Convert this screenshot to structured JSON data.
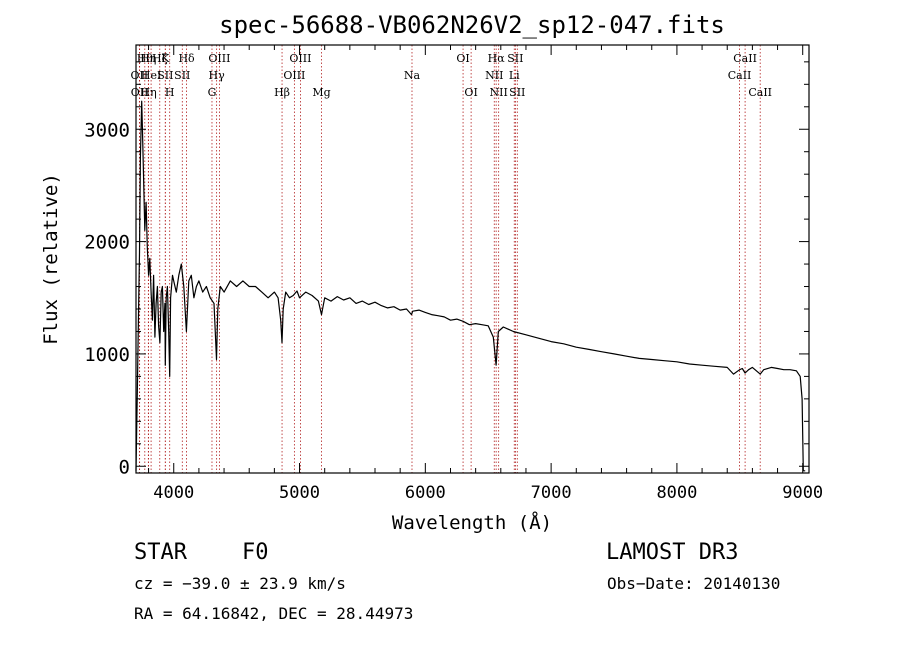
{
  "chart_data": {
    "type": "line",
    "title": "spec-56688-VB062N26V2_sp12-047.fits",
    "xlabel": "Wavelength (Å)",
    "ylabel": "Flux (relative)",
    "xlim": [
      3700,
      9050
    ],
    "ylim": [
      -60,
      3750
    ],
    "xticks": [
      4000,
      5000,
      6000,
      7000,
      8000,
      9000
    ],
    "yticks": [
      0,
      1000,
      2000,
      3000
    ],
    "grid": false,
    "series": [
      {
        "name": "flux",
        "x": [
          3700,
          3710,
          3720,
          3728,
          3735,
          3745,
          3750,
          3760,
          3770,
          3780,
          3790,
          3800,
          3810,
          3820,
          3830,
          3840,
          3850,
          3860,
          3870,
          3880,
          3890,
          3900,
          3910,
          3920,
          3930,
          3933,
          3940,
          3950,
          3960,
          3968,
          3975,
          3990,
          4000,
          4020,
          4040,
          4060,
          4080,
          4101,
          4120,
          4140,
          4160,
          4180,
          4200,
          4230,
          4260,
          4290,
          4320,
          4340,
          4350,
          4370,
          4400,
          4450,
          4500,
          4550,
          4600,
          4650,
          4700,
          4750,
          4800,
          4830,
          4850,
          4861,
          4870,
          4890,
          4920,
          4950,
          4980,
          5000,
          5050,
          5100,
          5150,
          5175,
          5200,
          5250,
          5300,
          5350,
          5400,
          5450,
          5500,
          5550,
          5600,
          5650,
          5700,
          5750,
          5800,
          5850,
          5890,
          5900,
          5950,
          6000,
          6050,
          6100,
          6150,
          6200,
          6250,
          6300,
          6350,
          6400,
          6450,
          6500,
          6540,
          6563,
          6580,
          6620,
          6700,
          6800,
          6900,
          7000,
          7100,
          7200,
          7300,
          7400,
          7500,
          7600,
          7700,
          7800,
          7900,
          8000,
          8100,
          8200,
          8300,
          8400,
          8450,
          8498,
          8520,
          8542,
          8570,
          8600,
          8662,
          8690,
          8750,
          8800,
          8850,
          8900,
          8950,
          8980,
          8995,
          9005,
          9010,
          9020
        ],
        "y": [
          -40,
          650,
          1350,
          1900,
          2750,
          3250,
          3050,
          2600,
          2100,
          2350,
          1950,
          1700,
          1850,
          1550,
          1300,
          1700,
          1150,
          1450,
          1600,
          1250,
          1100,
          1550,
          1600,
          1200,
          1450,
          900,
          1500,
          1600,
          1200,
          800,
          1500,
          1700,
          1650,
          1550,
          1700,
          1800,
          1600,
          1200,
          1650,
          1700,
          1500,
          1600,
          1650,
          1550,
          1600,
          1500,
          1450,
          950,
          1400,
          1600,
          1550,
          1650,
          1600,
          1650,
          1600,
          1600,
          1550,
          1500,
          1550,
          1500,
          1300,
          1100,
          1400,
          1550,
          1500,
          1520,
          1560,
          1500,
          1550,
          1520,
          1470,
          1350,
          1500,
          1470,
          1510,
          1480,
          1500,
          1450,
          1470,
          1440,
          1460,
          1430,
          1410,
          1420,
          1390,
          1400,
          1350,
          1380,
          1390,
          1370,
          1350,
          1340,
          1330,
          1300,
          1310,
          1290,
          1260,
          1270,
          1260,
          1250,
          1150,
          900,
          1200,
          1240,
          1200,
          1170,
          1140,
          1110,
          1090,
          1060,
          1040,
          1020,
          1000,
          980,
          960,
          950,
          940,
          930,
          910,
          900,
          890,
          880,
          820,
          860,
          870,
          830,
          860,
          880,
          820,
          860,
          880,
          870,
          860,
          860,
          850,
          800,
          600,
          -40,
          -40,
          -40
        ]
      }
    ],
    "line_markers": [
      {
        "w": 3727,
        "row": 2,
        "label": "OII"
      },
      {
        "w": 3729,
        "row": 3,
        "label": "OII"
      },
      {
        "w": 3770,
        "row": 1,
        "label": "Hθ"
      },
      {
        "w": 3798,
        "row": 1,
        "label": "Hη"
      },
      {
        "w": 3800,
        "row": 3,
        "label": "Hη"
      },
      {
        "w": 3820,
        "row": 2,
        "label": "HeI"
      },
      {
        "w": 3889,
        "row": 1,
        "label": "Hζ"
      },
      {
        "w": 3933,
        "row": 1,
        "label": "K"
      },
      {
        "w": 3933,
        "row": 2,
        "label": "SII"
      },
      {
        "w": 3968,
        "row": 3,
        "label": "H"
      },
      {
        "w": 4068,
        "row": 2,
        "label": "SII"
      },
      {
        "w": 4102,
        "row": 1,
        "label": "Hδ"
      },
      {
        "w": 4304,
        "row": 3,
        "label": "G"
      },
      {
        "w": 4341,
        "row": 2,
        "label": "Hγ"
      },
      {
        "w": 4363,
        "row": 1,
        "label": "OIII"
      },
      {
        "w": 4861,
        "row": 3,
        "label": "Hβ"
      },
      {
        "w": 4959,
        "row": 2,
        "label": "OIII"
      },
      {
        "w": 5007,
        "row": 1,
        "label": "OIII"
      },
      {
        "w": 5175,
        "row": 3,
        "label": "Mg"
      },
      {
        "w": 5894,
        "row": 2,
        "label": "Na"
      },
      {
        "w": 6300,
        "row": 1,
        "label": "OI"
      },
      {
        "w": 6364,
        "row": 3,
        "label": "OI"
      },
      {
        "w": 6548,
        "row": 2,
        "label": "NII"
      },
      {
        "w": 6563,
        "row": 1,
        "label": "Hα"
      },
      {
        "w": 6583,
        "row": 3,
        "label": "NII"
      },
      {
        "w": 6707,
        "row": 2,
        "label": "Li"
      },
      {
        "w": 6716,
        "row": 1,
        "label": "SII"
      },
      {
        "w": 6731,
        "row": 3,
        "label": "SII"
      },
      {
        "w": 8498,
        "row": 2,
        "label": "CaII"
      },
      {
        "w": 8542,
        "row": 1,
        "label": "CaII"
      },
      {
        "w": 8662,
        "row": 3,
        "label": "CaII"
      }
    ]
  },
  "info": {
    "object_class": "STAR",
    "subclass": "F0",
    "survey": "LAMOST DR3",
    "redshift": "cz = −39.0 ± 23.9 km/s",
    "obs_date": "Obs−Date: 20140130",
    "coords": "RA =  64.16842, DEC =  28.44973"
  },
  "colors": {
    "axis": "#000000",
    "spectrum": "#000000",
    "marker": "#b22222",
    "background": "#ffffff"
  }
}
